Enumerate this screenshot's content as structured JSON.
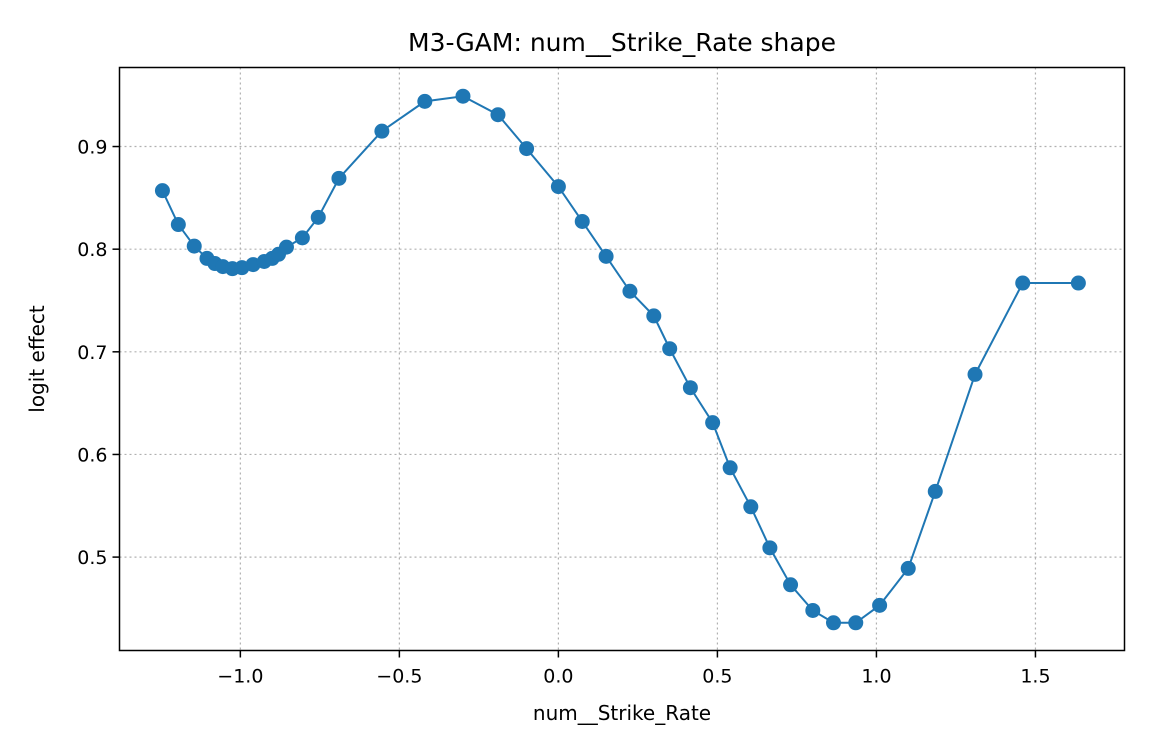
{
  "chart_data": {
    "type": "line",
    "title": "M3-GAM: num__Strike_Rate shape",
    "xlabel": "num__Strike_Rate",
    "ylabel": "logit effect",
    "xlim": [
      -1.38,
      1.78
    ],
    "ylim": [
      0.409,
      0.977
    ],
    "xticks": [
      -1.0,
      -0.5,
      0.0,
      0.5,
      1.0,
      1.5
    ],
    "xtick_labels": [
      "−1.0",
      "−0.5",
      "0.0",
      "0.5",
      "1.0",
      "1.5"
    ],
    "yticks": [
      0.5,
      0.6,
      0.7,
      0.8,
      0.9
    ],
    "ytick_labels": [
      "0.5",
      "0.6",
      "0.7",
      "0.8",
      "0.9"
    ],
    "grid": true,
    "grid_style": "dotted",
    "marker": "circle",
    "color": "#1f77b4",
    "series": [
      {
        "x": [
          -1.245,
          -1.195,
          -1.145,
          -1.105,
          -1.08,
          -1.055,
          -1.025,
          -0.995,
          -0.96,
          -0.925,
          -0.9,
          -0.88,
          -0.855,
          -0.805,
          -0.755,
          -0.69,
          -0.555,
          -0.42,
          -0.3,
          -0.19,
          -0.1,
          0.0,
          0.075,
          0.15,
          0.225,
          0.3,
          0.35,
          0.415,
          0.485,
          0.54,
          0.605,
          0.665,
          0.73,
          0.8,
          0.865,
          0.935,
          1.01,
          1.1,
          1.185,
          1.31,
          1.46,
          1.635
        ],
        "y": [
          0.857,
          0.824,
          0.803,
          0.791,
          0.786,
          0.783,
          0.781,
          0.782,
          0.785,
          0.788,
          0.791,
          0.795,
          0.802,
          0.811,
          0.831,
          0.869,
          0.915,
          0.944,
          0.949,
          0.931,
          0.898,
          0.861,
          0.827,
          0.793,
          0.759,
          0.735,
          0.703,
          0.665,
          0.631,
          0.587,
          0.549,
          0.509,
          0.473,
          0.448,
          0.436,
          0.436,
          0.453,
          0.489,
          0.564,
          0.678,
          0.767,
          0.767
        ]
      }
    ]
  }
}
